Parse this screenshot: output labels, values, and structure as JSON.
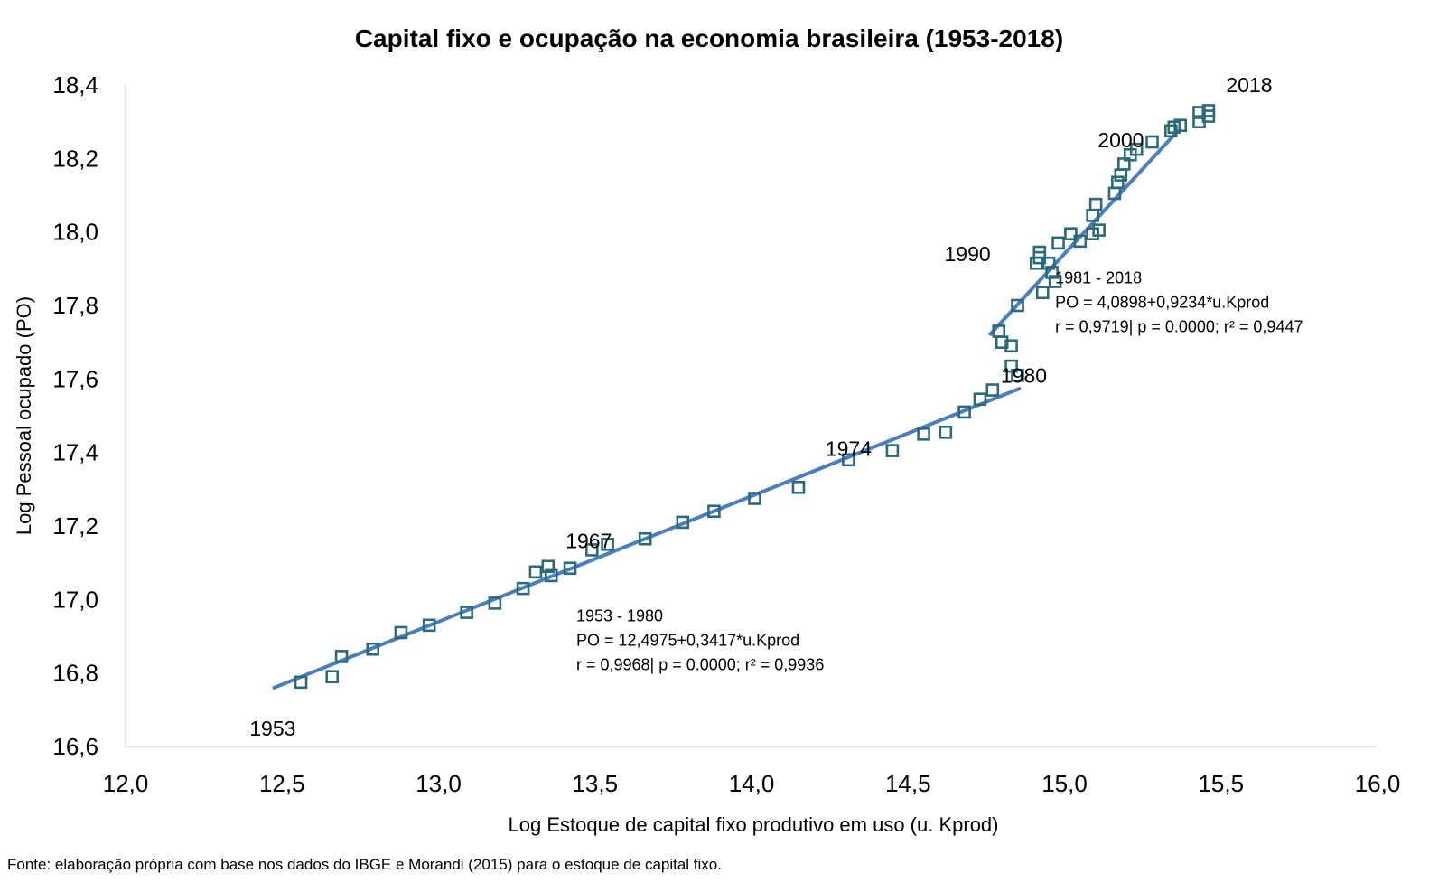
{
  "chart_data": {
    "type": "scatter",
    "title": "Capital fixo e ocupação na economia brasileira (1953-2018)",
    "xlabel": "Log Estoque de capital fixo produtivo em uso (u. Kprod)",
    "ylabel": "Log Pessoal ocupado (PO)",
    "xlim": [
      12.0,
      16.0
    ],
    "ylim": [
      16.6,
      18.4
    ],
    "x_ticks": [
      "12,0",
      "12,5",
      "13,0",
      "13,5",
      "14,0",
      "14,5",
      "15,0",
      "15,5",
      "16,0"
    ],
    "y_ticks": [
      "16,6",
      "16,8",
      "17,0",
      "17,2",
      "17,4",
      "17,6",
      "17,8",
      "18,0",
      "18,2",
      "18,4"
    ],
    "grid": false,
    "points": [
      [
        12.56,
        16.775
      ],
      [
        12.66,
        16.79
      ],
      [
        12.69,
        16.845
      ],
      [
        12.79,
        16.865
      ],
      [
        12.88,
        16.91
      ],
      [
        12.97,
        16.93
      ],
      [
        13.09,
        16.965
      ],
      [
        13.18,
        16.99
      ],
      [
        13.27,
        17.03
      ],
      [
        13.31,
        17.075
      ],
      [
        13.35,
        17.09
      ],
      [
        13.36,
        17.065
      ],
      [
        13.42,
        17.085
      ],
      [
        13.49,
        17.135
      ],
      [
        13.54,
        17.15
      ],
      [
        13.66,
        17.165
      ],
      [
        13.78,
        17.21
      ],
      [
        13.88,
        17.24
      ],
      [
        14.01,
        17.275
      ],
      [
        14.15,
        17.305
      ],
      [
        14.31,
        17.38
      ],
      [
        14.45,
        17.405
      ],
      [
        14.55,
        17.45
      ],
      [
        14.62,
        17.455
      ],
      [
        14.68,
        17.51
      ],
      [
        14.73,
        17.545
      ],
      [
        14.77,
        17.57
      ],
      [
        14.85,
        17.61
      ],
      [
        14.83,
        17.635
      ],
      [
        14.83,
        17.69
      ],
      [
        14.8,
        17.7
      ],
      [
        14.79,
        17.73
      ],
      [
        14.85,
        17.8
      ],
      [
        14.93,
        17.835
      ],
      [
        14.97,
        17.865
      ],
      [
        14.96,
        17.89
      ],
      [
        14.95,
        17.915
      ],
      [
        14.91,
        17.915
      ],
      [
        14.92,
        17.93
      ],
      [
        14.92,
        17.945
      ],
      [
        14.98,
        17.97
      ],
      [
        15.02,
        17.995
      ],
      [
        15.05,
        17.975
      ],
      [
        15.09,
        17.995
      ],
      [
        15.11,
        18.005
      ],
      [
        15.09,
        18.045
      ],
      [
        15.1,
        18.075
      ],
      [
        15.16,
        18.105
      ],
      [
        15.17,
        18.135
      ],
      [
        15.18,
        18.155
      ],
      [
        15.19,
        18.185
      ],
      [
        15.21,
        18.21
      ],
      [
        15.23,
        18.225
      ],
      [
        15.28,
        18.245
      ],
      [
        15.34,
        18.275
      ],
      [
        15.35,
        18.285
      ],
      [
        15.37,
        18.29
      ],
      [
        15.43,
        18.3
      ],
      [
        15.46,
        18.315
      ],
      [
        15.43,
        18.325
      ],
      [
        15.46,
        18.33
      ]
    ],
    "trendlines": [
      {
        "x": [
          12.47,
          14.86
        ],
        "equation": "12,4975+0,3417*u.Kprod",
        "intercept": 12.4975,
        "slope": 0.3417
      },
      {
        "x": [
          14.76,
          15.36
        ],
        "equation": "4,0898+0,9234*u.Kprod",
        "intercept": 4.0898,
        "slope": 0.9234
      }
    ],
    "year_labels": [
      {
        "text": "1953",
        "x": 12.47,
        "y": 16.63
      },
      {
        "text": "1967",
        "x": 13.48,
        "y": 17.14
      },
      {
        "text": "1974",
        "x": 14.31,
        "y": 17.39
      },
      {
        "text": "1980",
        "x": 14.87,
        "y": 17.59
      },
      {
        "text": "1990",
        "x": 14.69,
        "y": 17.92
      },
      {
        "text": "2000",
        "x": 15.18,
        "y": 18.23
      },
      {
        "text": "2018",
        "x": 15.59,
        "y": 18.38
      }
    ],
    "annotations": [
      {
        "lines": [
          "1953 - 1980",
          "PO = 12,4975+0,3417*u.Kprod",
          "r = 0,9968| p = 0.0000; r² = 0,9936"
        ],
        "x": 13.44,
        "y": 16.94
      },
      {
        "lines": [
          "1981 - 2018",
          "PO = 4,0898+0,9234*u.Kprod",
          "r = 0,9719| p = 0.0000; r² = 0,9447"
        ],
        "x": 14.97,
        "y": 17.86
      }
    ]
  },
  "source": "Fonte: elaboração própria com base nos dados do IBGE e Morandi (2015) para o estoque de capital fixo.",
  "colors": {
    "marker": "#2b6a78",
    "trend": "#4a7ebf",
    "axis": "#d9d9d9"
  }
}
